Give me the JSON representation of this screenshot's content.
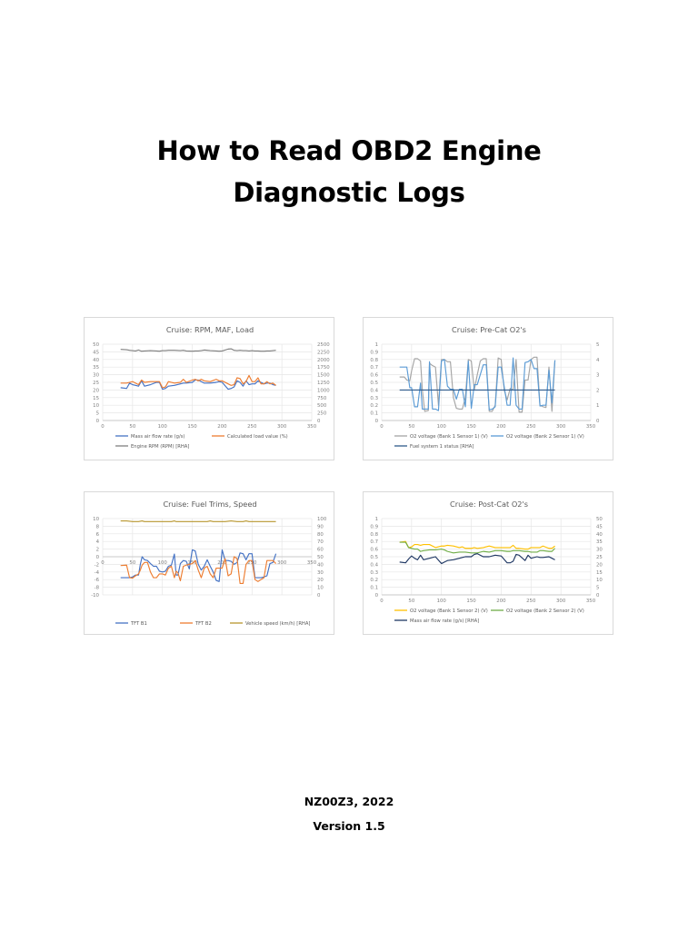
{
  "document": {
    "title_line1": "How to Read OBD2 Engine",
    "title_line2": "Diagnostic Logs",
    "author_year": "NZ00Z3, 2022",
    "version": "Version 1.5"
  },
  "chart_data": [
    {
      "id": "rpm-maf-load",
      "type": "line",
      "title": "Cruise: RPM, MAF, Load",
      "xlabel": "",
      "ylabel": "",
      "y2label": "",
      "xlim": [
        0,
        350
      ],
      "xticks": [
        0,
        50,
        100,
        150,
        200,
        250,
        300,
        350
      ],
      "ylim": [
        0,
        50
      ],
      "yticks": [
        0,
        5,
        10,
        15,
        20,
        25,
        30,
        35,
        40,
        45,
        50
      ],
      "y2lim": [
        0,
        2500
      ],
      "y2ticks": [
        0,
        250,
        500,
        750,
        1000,
        1250,
        1500,
        1750,
        2000,
        2250,
        2500
      ],
      "grid": true,
      "legend_position": "bottom",
      "x": [
        30,
        40,
        45,
        50,
        55,
        60,
        65,
        70,
        80,
        90,
        95,
        100,
        105,
        110,
        120,
        130,
        135,
        140,
        150,
        155,
        160,
        165,
        170,
        180,
        190,
        195,
        200,
        210,
        215,
        220,
        225,
        230,
        235,
        240,
        245,
        250,
        255,
        260,
        265,
        270,
        275,
        280,
        285,
        290
      ],
      "series": [
        {
          "name": "Mass air flow rate (g/s)",
          "axis": "left",
          "color": "#4472c4",
          "values": [
            21.5,
            21,
            24.5,
            23.5,
            23,
            22.5,
            26,
            22.5,
            23.5,
            25,
            25,
            20.5,
            21,
            22.5,
            23,
            24,
            24.5,
            24.5,
            25,
            26.5,
            26.5,
            25.5,
            24.5,
            24.5,
            25,
            25.5,
            25,
            20.5,
            21,
            22,
            26,
            25,
            22.5,
            26,
            23.5,
            24,
            24,
            26,
            25,
            24,
            24.5,
            24.5,
            23.5,
            23
          ]
        },
        {
          "name": "Calculated load value (%)",
          "axis": "left",
          "color": "#ed7d31",
          "values": [
            24.5,
            24.5,
            25,
            25.5,
            24.5,
            23.5,
            26.5,
            25,
            25.5,
            25.5,
            25.5,
            21.5,
            22,
            25.5,
            24.5,
            25,
            27,
            25,
            26.5,
            27,
            26,
            27,
            26,
            25.5,
            27,
            26,
            26,
            24,
            23,
            23.5,
            28,
            27.5,
            24,
            25.5,
            29.5,
            25.5,
            25.5,
            28,
            24,
            24,
            25.5,
            24,
            24.5,
            23
          ]
        },
        {
          "name": "Engine RPM (RPM) [RHA]",
          "axis": "right",
          "color": "#7f7f7f",
          "values": [
            2330,
            2320,
            2300,
            2290,
            2280,
            2310,
            2270,
            2280,
            2290,
            2280,
            2270,
            2290,
            2290,
            2300,
            2300,
            2290,
            2300,
            2280,
            2270,
            2280,
            2280,
            2290,
            2310,
            2290,
            2280,
            2270,
            2280,
            2340,
            2350,
            2300,
            2290,
            2300,
            2290,
            2290,
            2280,
            2290,
            2280,
            2280,
            2270,
            2270,
            2280,
            2280,
            2290,
            2300
          ]
        }
      ]
    },
    {
      "id": "pre-cat-o2",
      "type": "line",
      "title": "Cruise: Pre-Cat O2's",
      "xlabel": "",
      "ylabel": "",
      "y2label": "",
      "xlim": [
        0,
        350
      ],
      "xticks": [
        0,
        50,
        100,
        150,
        200,
        250,
        300,
        350
      ],
      "ylim": [
        0,
        1
      ],
      "yticks": [
        0,
        0.1,
        0.2,
        0.3,
        0.4,
        0.5,
        0.6,
        0.7,
        0.8,
        0.9,
        1
      ],
      "y2lim": [
        0,
        5
      ],
      "y2ticks": [
        0,
        1,
        2,
        3,
        4,
        5
      ],
      "grid": true,
      "legend_position": "bottom",
      "x": [
        30,
        38,
        42,
        47,
        50,
        55,
        60,
        65,
        68,
        72,
        78,
        80,
        85,
        90,
        95,
        100,
        105,
        110,
        115,
        120,
        125,
        130,
        135,
        140,
        145,
        150,
        155,
        160,
        165,
        170,
        175,
        180,
        185,
        190,
        195,
        200,
        205,
        210,
        215,
        220,
        225,
        230,
        235,
        240,
        245,
        250,
        255,
        260,
        265,
        270,
        275,
        280,
        285,
        290
      ],
      "series": [
        {
          "name": "O2 voltage (Bank 1  Sensor 1) (V)",
          "axis": "left",
          "color": "#a5a5a5",
          "values": [
            0.57,
            0.57,
            0.53,
            0.52,
            0.65,
            0.81,
            0.81,
            0.78,
            0.4,
            0.12,
            0.13,
            0.75,
            0.72,
            0.7,
            0.2,
            0.8,
            0.8,
            0.77,
            0.77,
            0.3,
            0.16,
            0.15,
            0.15,
            0.3,
            0.8,
            0.78,
            0.4,
            0.6,
            0.78,
            0.81,
            0.81,
            0.12,
            0.12,
            0.2,
            0.82,
            0.8,
            0.4,
            0.27,
            0.42,
            0.4,
            0.8,
            0.11,
            0.11,
            0.53,
            0.53,
            0.8,
            0.83,
            0.83,
            0.2,
            0.18,
            0.17,
            0.7,
            0.12,
            0.79
          ]
        },
        {
          "name": "O2 voltage (Bank 2  Sensor 1) (V)",
          "axis": "left",
          "color": "#5b9bd5",
          "values": [
            0.7,
            0.7,
            0.7,
            0.43,
            0.43,
            0.18,
            0.18,
            0.49,
            0.15,
            0.15,
            0.15,
            0.77,
            0.15,
            0.15,
            0.13,
            0.78,
            0.8,
            0.45,
            0.41,
            0.41,
            0.28,
            0.41,
            0.41,
            0.18,
            0.78,
            0.16,
            0.47,
            0.47,
            0.6,
            0.73,
            0.73,
            0.14,
            0.15,
            0.18,
            0.7,
            0.7,
            0.45,
            0.2,
            0.2,
            0.82,
            0.2,
            0.15,
            0.15,
            0.76,
            0.77,
            0.8,
            0.68,
            0.68,
            0.19,
            0.2,
            0.2,
            0.66,
            0.23,
            0.79
          ]
        },
        {
          "name": "Fuel system 1 status [RHA]",
          "axis": "right",
          "color": "#2e5a8a",
          "values": [
            2,
            2,
            2,
            2,
            2,
            2,
            2,
            2,
            2,
            2,
            2,
            2,
            2,
            2,
            2,
            2,
            2,
            2,
            2,
            2,
            2,
            2,
            2,
            2,
            2,
            2,
            2,
            2,
            2,
            2,
            2,
            2,
            2,
            2,
            2,
            2,
            2,
            2,
            2,
            2,
            2,
            2,
            2,
            2,
            2,
            2,
            2,
            2,
            2,
            2,
            2,
            2,
            2,
            2
          ]
        }
      ]
    },
    {
      "id": "fuel-trims-speed",
      "type": "line",
      "title": "Cruise: Fuel Trims, Speed",
      "xlabel": "",
      "ylabel": "",
      "y2label": "",
      "xlim": [
        0,
        350
      ],
      "xticks": [
        0,
        50,
        100,
        150,
        200,
        250,
        300,
        350
      ],
      "ylim": [
        -10,
        10
      ],
      "yticks": [
        -10,
        -8,
        -6,
        -4,
        -2,
        0,
        2,
        4,
        6,
        8,
        10
      ],
      "y2lim": [
        0,
        100
      ],
      "y2ticks": [
        0,
        10,
        20,
        30,
        40,
        50,
        60,
        70,
        80,
        90,
        100
      ],
      "x_axis_at_zero": true,
      "grid": true,
      "legend_position": "bottom",
      "x": [
        30,
        40,
        45,
        50,
        55,
        60,
        63,
        66,
        70,
        75,
        80,
        85,
        90,
        95,
        100,
        105,
        110,
        115,
        120,
        123,
        126,
        130,
        135,
        140,
        145,
        150,
        155,
        160,
        165,
        170,
        175,
        180,
        185,
        190,
        195,
        200,
        205,
        210,
        215,
        220,
        225,
        230,
        235,
        240,
        245,
        250,
        255,
        260,
        265,
        270,
        275,
        280,
        285,
        290
      ],
      "series": [
        {
          "name": "TFT B1",
          "axis": "left",
          "color": "#4472c4",
          "values": [
            -5.5,
            -5.5,
            -5.5,
            -5.3,
            -4.8,
            -4.8,
            -2,
            0,
            -0.8,
            -1,
            -1.8,
            -2.5,
            -2.5,
            -3.8,
            -4,
            -3.8,
            -2.5,
            -2.2,
            0.7,
            -4.8,
            -4.8,
            -1.8,
            -1,
            -1.2,
            -3.2,
            1.8,
            1.5,
            -2,
            -3.5,
            -2.5,
            -0.8,
            -2.5,
            -4,
            -6.2,
            -6.5,
            1.8,
            -1,
            -1,
            -1.2,
            -2,
            -1.5,
            1,
            0.8,
            -0.8,
            0.8,
            0.8,
            -5.5,
            -5.5,
            -5.5,
            -5.3,
            -5,
            -1.8,
            -1.5,
            0.8
          ]
        },
        {
          "name": "TFT B2",
          "axis": "left",
          "color": "#ed7d31",
          "values": [
            -2.3,
            -2.2,
            -5.5,
            -5.6,
            -5,
            -4.5,
            -3.5,
            -2.2,
            -1.5,
            -1.5,
            -4,
            -5.5,
            -5.5,
            -4.5,
            -4.5,
            -4.8,
            -3,
            -2.5,
            -5.5,
            -3.8,
            -4.2,
            -6.3,
            -2.5,
            -2.2,
            -2,
            -1.8,
            -1,
            -3.5,
            -5.5,
            -3,
            -2.5,
            -4.5,
            -5.5,
            -3,
            -3,
            -3,
            -0.5,
            -5,
            -4.5,
            0,
            -0.5,
            -7,
            -7,
            -2,
            -1,
            -1,
            -6,
            -6.5,
            -6,
            -5.5,
            -1,
            -1,
            -1,
            -1.8
          ]
        },
        {
          "name": "Vehicle speed (km/h) [RHA]",
          "axis": "right",
          "color": "#b8962e",
          "values": [
            97,
            97,
            96.5,
            96,
            96,
            96,
            96.5,
            97,
            96,
            96,
            96,
            96,
            96,
            96,
            96,
            96,
            96,
            96,
            97,
            96,
            96,
            96,
            96,
            96,
            96,
            96,
            96,
            96,
            96,
            96,
            96,
            97,
            96,
            96,
            96,
            96,
            96,
            96.5,
            97,
            96.5,
            96,
            96,
            96,
            97,
            96,
            96,
            96,
            96,
            96,
            96,
            96,
            96,
            96,
            96
          ]
        }
      ]
    },
    {
      "id": "post-cat-o2",
      "type": "line",
      "title": "Cruise: Post-Cat O2's",
      "xlabel": "",
      "ylabel": "",
      "y2label": "",
      "xlim": [
        0,
        350
      ],
      "xticks": [
        0,
        50,
        100,
        150,
        200,
        250,
        300,
        350
      ],
      "ylim": [
        0,
        1
      ],
      "yticks": [
        0,
        0.1,
        0.2,
        0.3,
        0.4,
        0.5,
        0.6,
        0.7,
        0.8,
        0.9,
        1
      ],
      "y2lim": [
        0,
        50
      ],
      "y2ticks": [
        0,
        5,
        10,
        15,
        20,
        25,
        30,
        35,
        40,
        45,
        50
      ],
      "grid": true,
      "legend_position": "bottom",
      "x": [
        30,
        40,
        45,
        50,
        55,
        60,
        65,
        70,
        80,
        90,
        100,
        105,
        110,
        120,
        130,
        135,
        140,
        150,
        155,
        160,
        170,
        180,
        190,
        200,
        210,
        215,
        220,
        225,
        230,
        240,
        245,
        250,
        260,
        265,
        270,
        280,
        285,
        290
      ],
      "series": [
        {
          "name": "O2 voltage (Bank 1  Sensor 2) (V)",
          "axis": "left",
          "color": "#ffc000",
          "values": [
            0.69,
            0.7,
            0.62,
            0.63,
            0.66,
            0.66,
            0.65,
            0.66,
            0.66,
            0.62,
            0.64,
            0.64,
            0.65,
            0.64,
            0.62,
            0.63,
            0.61,
            0.61,
            0.62,
            0.61,
            0.62,
            0.64,
            0.62,
            0.62,
            0.62,
            0.62,
            0.65,
            0.61,
            0.61,
            0.6,
            0.6,
            0.62,
            0.62,
            0.62,
            0.64,
            0.61,
            0.61,
            0.64
          ]
        },
        {
          "name": "O2 voltage (Bank 2  Sensor 2) (V)",
          "axis": "left",
          "color": "#70ad47",
          "values": [
            0.69,
            0.69,
            0.62,
            0.61,
            0.6,
            0.6,
            0.57,
            0.58,
            0.59,
            0.59,
            0.6,
            0.59,
            0.57,
            0.55,
            0.56,
            0.56,
            0.56,
            0.55,
            0.55,
            0.55,
            0.57,
            0.56,
            0.58,
            0.58,
            0.57,
            0.57,
            0.58,
            0.58,
            0.58,
            0.57,
            0.57,
            0.56,
            0.56,
            0.58,
            0.58,
            0.57,
            0.57,
            0.61
          ]
        },
        {
          "name": "Mass air flow rate (g/s) [RHA]",
          "axis": "right",
          "color": "#203864",
          "values": [
            21.5,
            21,
            23.5,
            25.5,
            24,
            23,
            26,
            23,
            24,
            25,
            20.5,
            21.5,
            22.5,
            23,
            24,
            24.5,
            25,
            25,
            26.5,
            27,
            25,
            25,
            26,
            25.5,
            21,
            21,
            22,
            26.5,
            26,
            22.5,
            26,
            24,
            25,
            24.5,
            24.5,
            25,
            24,
            23
          ]
        }
      ]
    }
  ]
}
